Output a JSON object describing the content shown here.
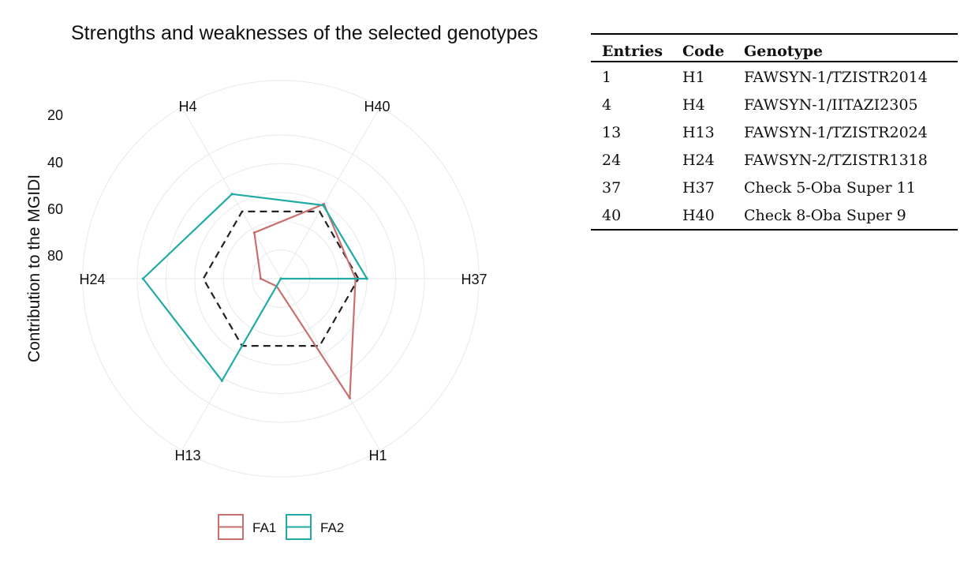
{
  "chart_data": {
    "type": "radar",
    "title": "Strengths and weaknesses of the selected genotypes",
    "ylabel": "Contribution to the MGIDI",
    "axes": [
      "H37",
      "H40",
      "H4",
      "H24",
      "H13",
      "H1"
    ],
    "ticks": [
      "20",
      "40",
      "60",
      "80"
    ],
    "range": [
      0,
      100
    ],
    "series": [
      {
        "name": "FA1",
        "color": "#c9706f",
        "values": [
          52,
          60,
          37,
          14,
          6,
          96
        ]
      },
      {
        "name": "FA2",
        "color": "#22aaa5",
        "values": [
          60,
          59,
          68,
          96,
          82,
          0
        ]
      }
    ],
    "reference": {
      "style": "dashed",
      "color": "#222222",
      "value": 54
    },
    "legend_position": "bottom"
  },
  "table": {
    "headers": [
      "Entries",
      "Code",
      "Genotype"
    ],
    "rows": [
      [
        "1",
        "H1",
        "FAWSYN-1/TZISTR2014"
      ],
      [
        "4",
        "H4",
        "FAWSYN-1/IITAZI2305"
      ],
      [
        "13",
        "H13",
        "FAWSYN-1/TZISTR2024"
      ],
      [
        "24",
        "H24",
        "FAWSYN-2/TZISTR1318"
      ],
      [
        "37",
        "H37",
        "Check 5-Oba Super 11"
      ],
      [
        "40",
        "H40",
        "Check 8-Oba Super 9"
      ]
    ]
  }
}
